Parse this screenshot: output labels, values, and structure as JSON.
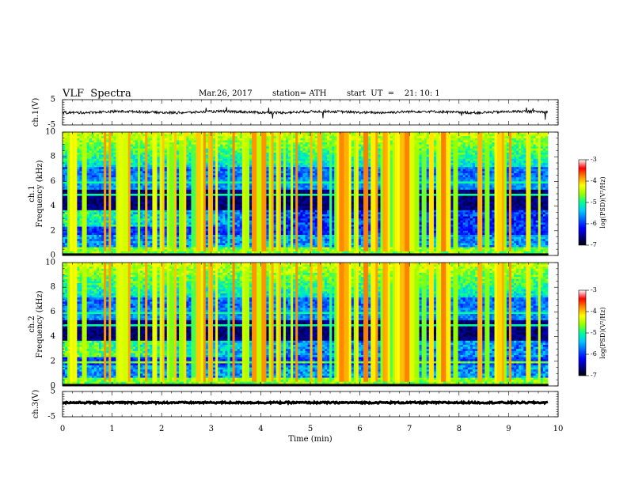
{
  "header": {
    "title": "VLF  Spectra",
    "date": "Mar.26, 2017",
    "station": "station= ATH",
    "start": "start  UT  =    21: 10: 1"
  },
  "chart_data": [
    {
      "type": "line",
      "panel": "ch1-waveform",
      "ylabel": "ch.1(V)",
      "ylim": [
        -5,
        5
      ],
      "yticks": [
        "5",
        "-5"
      ],
      "xlim": [
        0,
        10
      ],
      "color": "#000000"
    },
    {
      "type": "heatmap",
      "panel": "ch1-spectrogram",
      "ylabel": "ch.1\nFrequency  (kHz)",
      "ylim": [
        0,
        10
      ],
      "yticks": [
        "0",
        "2",
        "4",
        "6",
        "8",
        "10"
      ],
      "xlim": [
        0,
        10
      ],
      "colorbar": {
        "label": "log(PSD)(V²/Hz)",
        "range": [
          -7,
          -3
        ],
        "ticks": [
          "-3",
          "-4",
          "-5",
          "-6",
          "-7"
        ]
      }
    },
    {
      "type": "heatmap",
      "panel": "ch2-spectrogram",
      "ylabel": "ch.2\nFrequency  (kHz)",
      "ylim": [
        0,
        10
      ],
      "yticks": [
        "0",
        "2",
        "4",
        "6",
        "8",
        "10"
      ],
      "xlim": [
        0,
        10
      ],
      "colorbar": {
        "label": "log(PSD)(V²/Hz)",
        "range": [
          -7,
          -3
        ],
        "ticks": [
          "-3",
          "-4",
          "-5",
          "-6",
          "-7"
        ]
      }
    },
    {
      "type": "line",
      "panel": "ch3-waveform",
      "ylabel": "ch.3(V)",
      "ylim": [
        -5,
        5
      ],
      "yticks": [
        "5",
        "-5"
      ],
      "xlim": [
        0,
        10
      ],
      "color": "#000000"
    }
  ],
  "xaxis": {
    "label": "Time  (min)",
    "ticks": [
      "0",
      "1",
      "2",
      "3",
      "4",
      "5",
      "6",
      "7",
      "8",
      "9",
      "10"
    ],
    "range": [
      0,
      10
    ]
  },
  "colors": {
    "colormap": [
      "#000000",
      "#00008c",
      "#0000ff",
      "#0064ff",
      "#00c8ff",
      "#00ff96",
      "#96ff00",
      "#ffff00",
      "#ff8c00",
      "#ff0000",
      "#ffffff"
    ]
  }
}
